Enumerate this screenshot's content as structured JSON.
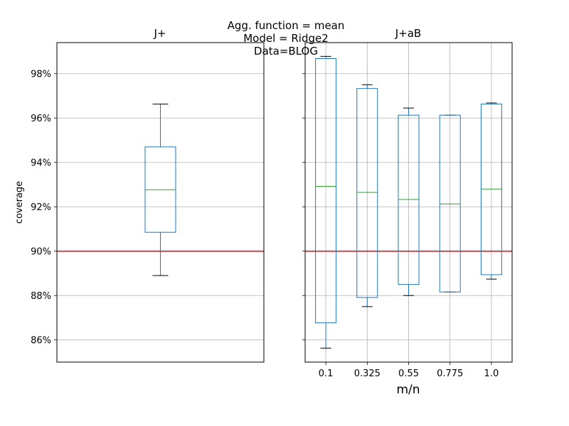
{
  "figure": {
    "suptitle_lines": [
      "Agg. function = mean",
      "Model = Ridge2",
      "Data=BLOG"
    ]
  },
  "chart_data": [
    {
      "type": "box",
      "title": "J+",
      "ylabel": "coverage",
      "xlabel": "",
      "ylim": [
        0.85,
        0.994
      ],
      "yticks": [
        0.86,
        0.88,
        0.9,
        0.92,
        0.94,
        0.96,
        0.98
      ],
      "ytick_labels": [
        "86%",
        "88%",
        "90%",
        "92%",
        "94%",
        "96%",
        "98%"
      ],
      "grid": "y",
      "reference_line": {
        "y": 0.9,
        "color": "#ff0000"
      },
      "box_color": "#1f77b4",
      "median_color": "#2ca02c",
      "categories": [
        ""
      ],
      "boxes": [
        {
          "whisker_low": 0.889,
          "q1": 0.9085,
          "median": 0.9277,
          "q3": 0.947,
          "whisker_high": 0.9663
        }
      ]
    },
    {
      "type": "box",
      "title": "J+aB",
      "ylabel": "",
      "xlabel": "m/n",
      "ylim": [
        0.85,
        0.994
      ],
      "yticks": [
        0.86,
        0.88,
        0.9,
        0.92,
        0.94,
        0.96,
        0.98
      ],
      "grid": "both",
      "reference_line": {
        "y": 0.9,
        "color": "#ff0000"
      },
      "box_color": "#1f77b4",
      "median_color": "#2ca02c",
      "categories": [
        "0.1",
        "0.325",
        "0.55",
        "0.775",
        "1.0"
      ],
      "boxes": [
        {
          "whisker_low": 0.8563,
          "q1": 0.8677,
          "median": 0.9292,
          "q3": 0.9868,
          "whisker_high": 0.9878
        },
        {
          "whisker_low": 0.875,
          "q1": 0.8791,
          "median": 0.9265,
          "q3": 0.9733,
          "whisker_high": 0.975
        },
        {
          "whisker_low": 0.88,
          "q1": 0.885,
          "median": 0.9233,
          "q3": 0.9613,
          "whisker_high": 0.9645
        },
        {
          "whisker_low": 0.8816,
          "q1": 0.8816,
          "median": 0.9213,
          "q3": 0.9613,
          "whisker_high": 0.9613
        },
        {
          "whisker_low": 0.8874,
          "q1": 0.8894,
          "median": 0.928,
          "q3": 0.9663,
          "whisker_high": 0.9668
        }
      ]
    }
  ]
}
